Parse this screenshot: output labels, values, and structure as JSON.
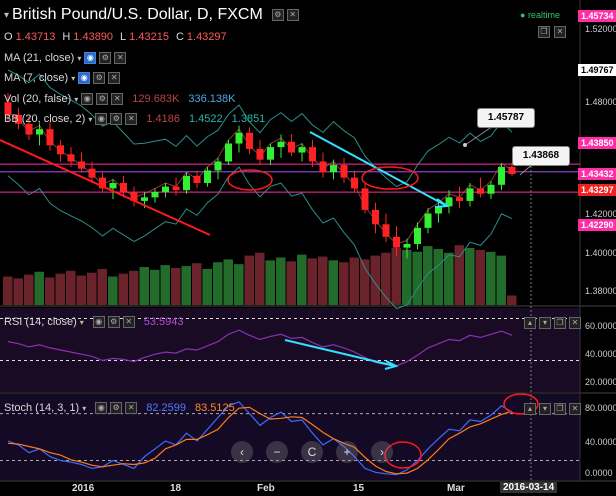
{
  "header": {
    "title": "British Pound/U.S. Dollar, D, FXCM",
    "realtime": "realtime",
    "ohlc": [
      {
        "k": "O",
        "v": "1.43713"
      },
      {
        "k": "H",
        "v": "1.43890"
      },
      {
        "k": "L",
        "v": "1.43215"
      },
      {
        "k": "C",
        "v": "1.43297"
      }
    ]
  },
  "indicators": {
    "ma21": "MA (21, close)",
    "ma7": "MA (7, close)",
    "vol": {
      "label": "Vol (20, false)",
      "v1": "129.683K",
      "v2": "336.138K"
    },
    "bb": {
      "label": "BB (20, close, 2)",
      "v1": "1.4186",
      "v2": "1.4522",
      "v3": "1.3851"
    }
  },
  "rsi": {
    "label": "RSI (14, close)",
    "value": "53.5943"
  },
  "stoch": {
    "label": "Stoch (14, 3, 1)",
    "k": "82.2599",
    "d": "83.5125"
  },
  "price_axis": {
    "ticks": [
      "1.52000",
      "1.48000",
      "1.42000",
      "1.40000",
      "1.38000"
    ],
    "labels": [
      {
        "text": "1.45734",
        "bg": "#ff2da6",
        "fg": "#ffffff"
      },
      {
        "text": "1.49767",
        "bg": "#ffffff",
        "fg": "#000000"
      },
      {
        "text": "1.43850",
        "bg": "#ff2da6",
        "fg": "#ffffff"
      },
      {
        "text": "1.43432",
        "bg": "#ff2da6",
        "fg": "#ffffff"
      },
      {
        "text": "1.43297",
        "bg": "#ee2222",
        "fg": "#ffffff"
      },
      {
        "text": "1.42290",
        "bg": "#ff2da6",
        "fg": "#ffffff"
      }
    ]
  },
  "rsi_axis": [
    "60.0000",
    "40.0000",
    "20.0000"
  ],
  "stoch_axis": [
    "80.0000",
    "40.0000",
    "0.0000"
  ],
  "callouts": [
    "1.45787",
    "1.43868"
  ],
  "x_axis": [
    "2016",
    "18",
    "Feb",
    "15",
    "Mar",
    "2016-03-14"
  ],
  "nav_buttons": [
    "‹",
    "−",
    "C",
    "+",
    "›"
  ],
  "colors": {
    "up": "#33ee33",
    "down": "#ff2222",
    "bb_band": "#2a8f8a",
    "rsi_line": "#8a30b0",
    "stoch_k": "#3b6cff",
    "stoch_d": "#ff7a1a",
    "trend_red": "#ff1a1a",
    "trend_cyan": "#33e0ff",
    "magenta": "#ff2da6"
  },
  "chart_data": {
    "type": "candlestick",
    "candles": [
      [
        1.473,
        1.478,
        1.462,
        1.466
      ],
      [
        1.466,
        1.47,
        1.458,
        1.461
      ],
      [
        1.461,
        1.465,
        1.452,
        1.455
      ],
      [
        1.455,
        1.461,
        1.449,
        1.458
      ],
      [
        1.458,
        1.462,
        1.446,
        1.449
      ],
      [
        1.449,
        1.452,
        1.44,
        1.444
      ],
      [
        1.444,
        1.448,
        1.437,
        1.44
      ],
      [
        1.44,
        1.445,
        1.434,
        1.436
      ],
      [
        1.436,
        1.44,
        1.428,
        1.431
      ],
      [
        1.431,
        1.434,
        1.423,
        1.425
      ],
      [
        1.425,
        1.43,
        1.419,
        1.428
      ],
      [
        1.428,
        1.432,
        1.42,
        1.423
      ],
      [
        1.423,
        1.426,
        1.415,
        1.418
      ],
      [
        1.418,
        1.423,
        1.414,
        1.42
      ],
      [
        1.42,
        1.425,
        1.417,
        1.423
      ],
      [
        1.423,
        1.428,
        1.42,
        1.426
      ],
      [
        1.426,
        1.431,
        1.421,
        1.424
      ],
      [
        1.424,
        1.434,
        1.422,
        1.432
      ],
      [
        1.432,
        1.435,
        1.425,
        1.428
      ],
      [
        1.428,
        1.437,
        1.426,
        1.435
      ],
      [
        1.435,
        1.442,
        1.43,
        1.44
      ],
      [
        1.44,
        1.452,
        1.438,
        1.45
      ],
      [
        1.45,
        1.46,
        1.445,
        1.456
      ],
      [
        1.456,
        1.459,
        1.444,
        1.447
      ],
      [
        1.447,
        1.452,
        1.438,
        1.441
      ],
      [
        1.441,
        1.45,
        1.438,
        1.448
      ],
      [
        1.448,
        1.455,
        1.442,
        1.451
      ],
      [
        1.451,
        1.455,
        1.443,
        1.445
      ],
      [
        1.445,
        1.45,
        1.44,
        1.448
      ],
      [
        1.448,
        1.452,
        1.437,
        1.44
      ],
      [
        1.44,
        1.445,
        1.431,
        1.434
      ],
      [
        1.434,
        1.441,
        1.43,
        1.438
      ],
      [
        1.438,
        1.442,
        1.428,
        1.431
      ],
      [
        1.431,
        1.435,
        1.423,
        1.425
      ],
      [
        1.425,
        1.428,
        1.411,
        1.413
      ],
      [
        1.413,
        1.417,
        1.4,
        1.405
      ],
      [
        1.405,
        1.411,
        1.395,
        1.398
      ],
      [
        1.398,
        1.404,
        1.387,
        1.392
      ],
      [
        1.392,
        1.397,
        1.386,
        1.394
      ],
      [
        1.394,
        1.406,
        1.391,
        1.403
      ],
      [
        1.403,
        1.414,
        1.4,
        1.411
      ],
      [
        1.411,
        1.419,
        1.406,
        1.415
      ],
      [
        1.415,
        1.424,
        1.411,
        1.42
      ],
      [
        1.42,
        1.426,
        1.414,
        1.418
      ],
      [
        1.418,
        1.428,
        1.415,
        1.425
      ],
      [
        1.425,
        1.431,
        1.42,
        1.422
      ],
      [
        1.422,
        1.429,
        1.419,
        1.427
      ],
      [
        1.427,
        1.439,
        1.424,
        1.437
      ],
      [
        1.437,
        1.439,
        1.432,
        1.433
      ]
    ],
    "volume": [
      0.3,
      0.28,
      0.32,
      0.35,
      0.29,
      0.33,
      0.36,
      0.31,
      0.34,
      0.38,
      0.3,
      0.33,
      0.36,
      0.4,
      0.37,
      0.42,
      0.39,
      0.41,
      0.44,
      0.38,
      0.45,
      0.48,
      0.43,
      0.52,
      0.55,
      0.47,
      0.5,
      0.46,
      0.53,
      0.49,
      0.51,
      0.47,
      0.45,
      0.5,
      0.48,
      0.52,
      0.55,
      0.6,
      0.58,
      0.56,
      0.62,
      0.59,
      0.55,
      0.63,
      0.6,
      0.58,
      0.56,
      0.52,
      0.1
    ],
    "rsi": [
      48,
      46,
      43,
      45,
      42,
      40,
      38,
      36,
      34,
      30,
      32,
      31,
      29,
      33,
      36,
      38,
      37,
      41,
      40,
      44,
      48,
      55,
      59,
      54,
      50,
      53,
      55,
      51,
      52,
      47,
      43,
      45,
      42,
      38,
      33,
      28,
      26,
      25,
      29,
      35,
      42,
      46,
      50,
      49,
      54,
      52,
      55,
      58,
      54
    ],
    "stoch_k": [
      45,
      40,
      30,
      35,
      25,
      20,
      18,
      15,
      10,
      12,
      20,
      15,
      10,
      25,
      35,
      45,
      40,
      55,
      45,
      60,
      75,
      90,
      95,
      80,
      65,
      75,
      82,
      70,
      72,
      55,
      40,
      48,
      38,
      25,
      10,
      5,
      3,
      2,
      8,
      20,
      35,
      48,
      60,
      58,
      72,
      70,
      78,
      90,
      82
    ],
    "stoch_d": [
      42,
      41,
      38,
      35,
      30,
      27,
      21,
      18,
      14,
      12,
      14,
      16,
      15,
      17,
      23,
      35,
      40,
      47,
      47,
      53,
      60,
      75,
      87,
      88,
      80,
      73,
      74,
      76,
      75,
      66,
      56,
      48,
      42,
      37,
      24,
      13,
      6,
      3,
      4,
      10,
      21,
      34,
      48,
      55,
      63,
      67,
      73,
      79,
      83
    ],
    "price_range": [
      1.36,
      1.53
    ],
    "x_labels": [
      "2016",
      "18",
      "Feb",
      "15",
      "Mar",
      "2016-03-14"
    ]
  }
}
